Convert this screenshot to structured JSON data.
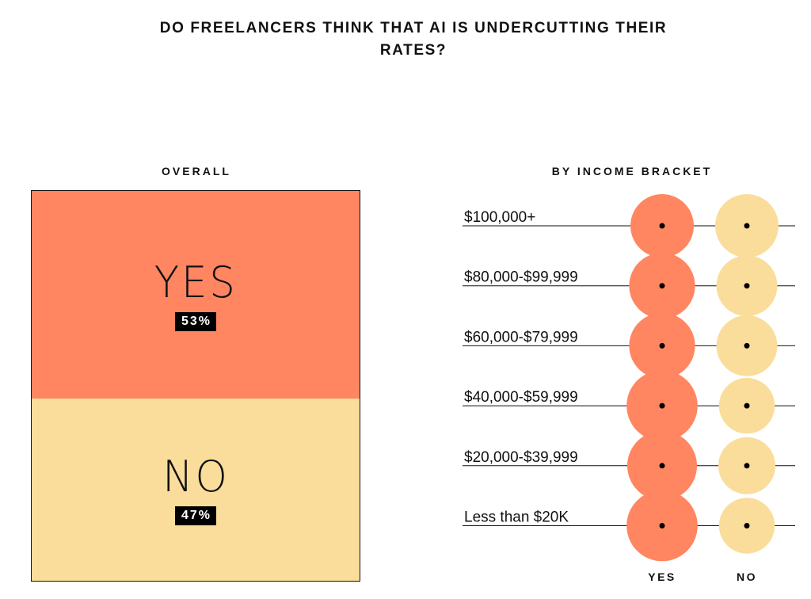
{
  "title": "DO FREELANCERS THINK THAT AI IS UNDERCUTTING THEIR RATES?",
  "overall": {
    "label": "OVERALL",
    "yes_word": "YES",
    "yes_pct": "53%",
    "no_word": "NO",
    "no_pct": "47%"
  },
  "bracket": {
    "label": "BY INCOME BRACKET",
    "yes_col": "YES",
    "no_col": "NO"
  },
  "colors": {
    "yes": "#FF8661",
    "no": "#FADD9A",
    "line": "#111111",
    "dot": "#000000"
  },
  "chart_data": [
    {
      "type": "table",
      "title": "OVERALL",
      "categories": [
        "YES",
        "NO"
      ],
      "values": [
        53,
        47
      ]
    },
    {
      "type": "scatter",
      "title": "BY INCOME BRACKET",
      "categories": [
        "$100,000+",
        "$80,000-$99,999",
        "$60,000-$79,999",
        "$40,000-$59,999",
        "$20,000-$39,999",
        "Less than $20K"
      ],
      "series": [
        {
          "name": "YES",
          "values": [
            50,
            52,
            52,
            56,
            55,
            56
          ]
        },
        {
          "name": "NO",
          "values": [
            50,
            48,
            48,
            44,
            45,
            44
          ]
        }
      ]
    }
  ]
}
